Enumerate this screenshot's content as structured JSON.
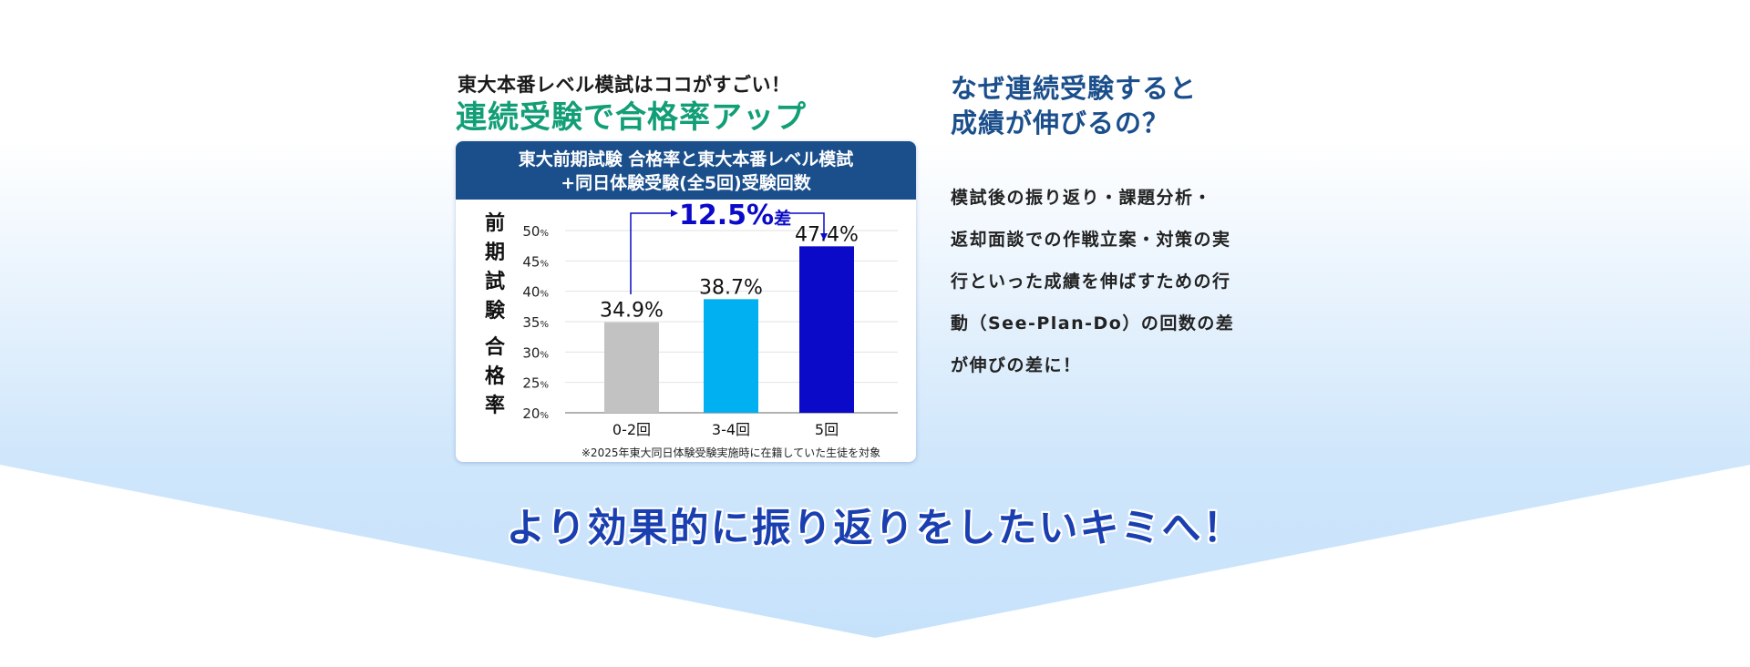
{
  "catch": {
    "small": "東大本番レベル模試はココがすごい！",
    "big": "連続受験で合格率アップ"
  },
  "card": {
    "header_line1": "東大前期試験 合格率と東大本番レベル模試",
    "header_line2": "+同日体験受験(全5回)受験回数"
  },
  "chart_data": {
    "type": "bar",
    "ylabel": "前期試験 合格率",
    "categories": [
      "0-2回",
      "3-4回",
      "5回"
    ],
    "values": [
      34.9,
      38.7,
      47.4
    ],
    "value_labels": [
      "34.9%",
      "38.7%",
      "47.4%"
    ],
    "colors": [
      "#c2c2c2",
      "#00b0f0",
      "#0a0ac8"
    ],
    "ylim": [
      20,
      50
    ],
    "yticks": [
      20,
      25,
      30,
      35,
      40,
      45,
      50
    ],
    "ytick_unit": "%",
    "grid": true,
    "annotation": {
      "value": "12.5%",
      "suffix": "差",
      "from": "0-2回",
      "to": "5回",
      "color": "#0a0ac8"
    },
    "footnote": "※2025年東大同日体験受験実施時に在籍していた生徒を対象"
  },
  "question": {
    "line1": "なぜ連続受験すると",
    "line2": "成績が伸びるの？"
  },
  "body": {
    "lines": [
      "模試後の振り返り・課題分析・",
      "返却面談での作戦立案・対策の実",
      "行といった成績を伸ばすための行",
      "動（See-Plan-Do）の回数の差",
      "が伸びの差に！"
    ]
  },
  "bottom": {
    "message": "より効果的に振り返りをしたいキミへ！"
  },
  "colors": {
    "accent_green": "#129e76",
    "navy": "#1b4f8c",
    "bottom_blue": "#1a3fb0"
  }
}
